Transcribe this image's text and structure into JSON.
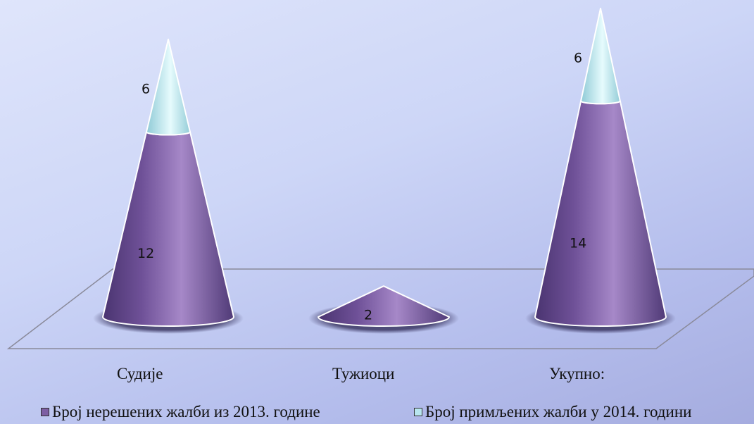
{
  "chart_data": {
    "type": "cone",
    "categories": [
      "Судије",
      "Тужиоци",
      "Укупно:"
    ],
    "series": [
      {
        "name": "Број нерешених жалби из 2013. године",
        "values": [
          12,
          2,
          14
        ],
        "color": "#7d5ea3"
      },
      {
        "name": "Број примљених жалби у 2014. години",
        "values": [
          6,
          0,
          6
        ],
        "color": "#b8e6ef"
      }
    ],
    "stacked": true,
    "data_labels": [
      {
        "text": "12",
        "series": 0,
        "category": 0
      },
      {
        "text": "6",
        "series": 1,
        "category": 0
      },
      {
        "text": "2",
        "series": 0,
        "category": 1
      },
      {
        "text": "14",
        "series": 0,
        "category": 2
      },
      {
        "text": "6",
        "series": 1,
        "category": 2
      }
    ],
    "legend_position": "bottom",
    "grid": false
  }
}
